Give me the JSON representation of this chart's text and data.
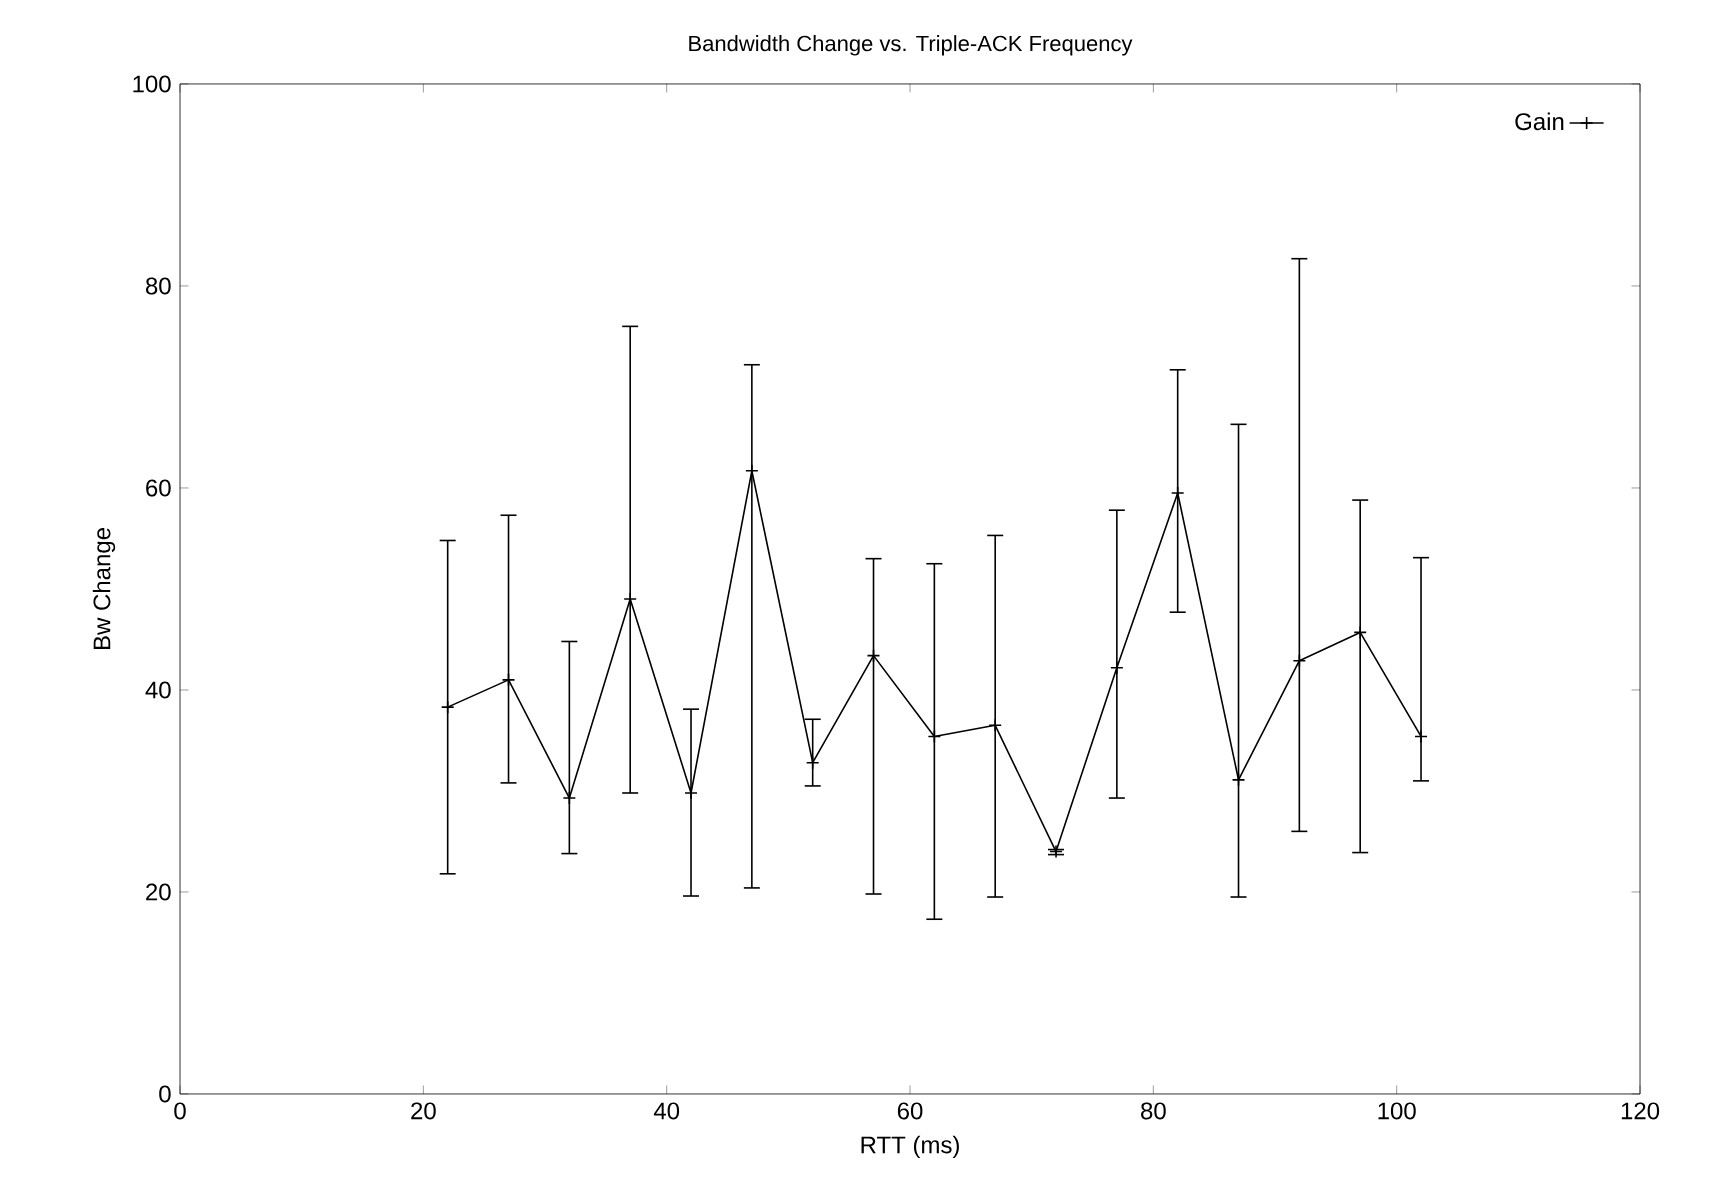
{
  "chart_data": {
    "type": "line",
    "title": "Bandwidth Change vs. Triple-ACK Frequency",
    "xlabel": "RTT (ms)",
    "ylabel": "Bw Change",
    "x": [
      22,
      27,
      32,
      37,
      42,
      47,
      52,
      57,
      62,
      67,
      72,
      77,
      82,
      87,
      92,
      97,
      102
    ],
    "series": [
      {
        "name": "Gain",
        "color": "#000000",
        "values": [
          38.3,
          41,
          29.3,
          49,
          29.8,
          61.7,
          32.8,
          43.4,
          35.4,
          36.5,
          24,
          42.2,
          59.5,
          31.1,
          42.9,
          45.7,
          35.4
        ],
        "errors": [
          [
            21.8,
            54.8
          ],
          [
            30.8,
            57.3
          ],
          [
            23.8,
            44.8
          ],
          [
            29.8,
            76
          ],
          [
            19.6,
            38.1
          ],
          [
            20.4,
            72.2
          ],
          [
            30.5,
            37.1
          ],
          [
            19.8,
            53
          ],
          [
            17.3,
            52.5
          ],
          [
            19.5,
            55.3
          ],
          [
            23.7,
            24.2
          ],
          [
            29.3,
            57.8
          ],
          [
            47.7,
            71.7
          ],
          [
            19.5,
            66.3
          ],
          [
            26,
            82.7
          ],
          [
            23.9,
            58.8
          ],
          [
            31,
            53.1
          ]
        ]
      }
    ],
    "xlim": [
      0,
      120
    ],
    "ylim": [
      0,
      100
    ],
    "xticks": [
      0,
      20,
      40,
      60,
      80,
      100,
      120
    ],
    "yticks": [
      0,
      20,
      40,
      60,
      80,
      100
    ],
    "legend": "top right",
    "marker": "cross",
    "line_style": "solid",
    "grid": false
  }
}
